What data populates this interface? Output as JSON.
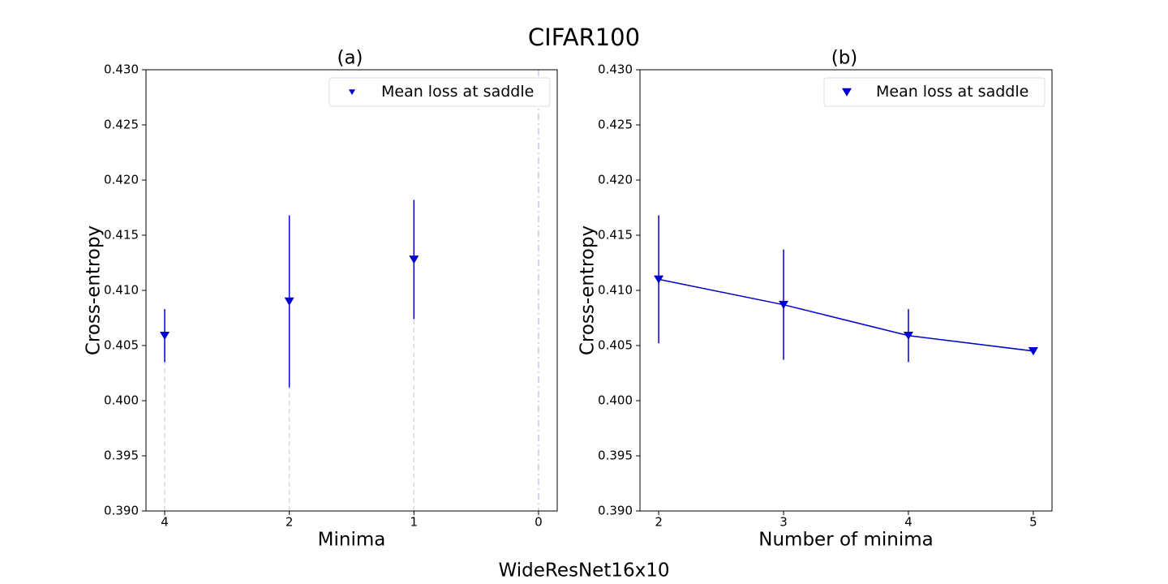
{
  "figure_title": "CIFAR100",
  "figure_caption": "WideResNet16x10",
  "chart_data": [
    {
      "type": "errorbar",
      "title": "(a)",
      "xlabel": "Minima",
      "ylabel": "Cross-entropy",
      "categories": [
        "4",
        "2",
        "1",
        "0"
      ],
      "series": [
        {
          "name": "Mean loss at saddle",
          "color": "#0000cd",
          "values": [
            0.4059,
            0.409,
            0.4128,
            null
          ],
          "errors": [
            0.0024,
            0.0078,
            0.0054,
            null
          ]
        }
      ],
      "ylim": [
        0.39,
        0.43
      ],
      "yticks": [
        {
          "value": 0.39,
          "label": "0.390"
        },
        0.395,
        {
          "value": 0.4,
          "label": "0.400"
        },
        0.405,
        {
          "value": 0.41,
          "label": "0.410"
        },
        0.415,
        {
          "value": 0.42,
          "label": "0.420"
        },
        0.425,
        {
          "value": 0.43,
          "label": "0.430"
        }
      ],
      "legend": "upper right"
    },
    {
      "type": "line",
      "title": "(b)",
      "xlabel": "Number of minima",
      "ylabel": "Cross-entropy",
      "x": [
        2,
        3,
        4,
        5
      ],
      "series": [
        {
          "name": "Mean loss at saddle",
          "color": "#0000cd",
          "values": [
            0.411,
            0.4087,
            0.4059,
            0.4045
          ],
          "errors": [
            0.0058,
            0.005,
            0.0024,
            0
          ]
        }
      ],
      "xlim": [
        1.85,
        5.15
      ],
      "xticks": [
        2,
        3,
        4,
        5
      ],
      "ylim": [
        0.39,
        0.43
      ],
      "yticks": [
        {
          "value": 0.39,
          "label": "0.390"
        },
        0.395,
        {
          "value": 0.4,
          "label": "0.400"
        },
        0.405,
        {
          "value": 0.41,
          "label": "0.410"
        },
        0.415,
        {
          "value": 0.42,
          "label": "0.420"
        },
        0.425,
        {
          "value": 0.43,
          "label": "0.430"
        }
      ],
      "legend": "upper right"
    }
  ]
}
